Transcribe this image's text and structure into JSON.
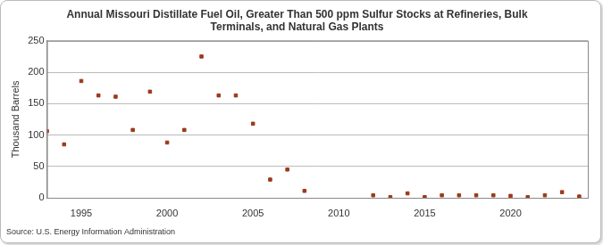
{
  "chart_data": {
    "type": "scatter",
    "title": "Annual Missouri Distillate Fuel Oil, Greater Than 500 ppm Sulfur Stocks at Refineries, Bulk\nTerminals, and Natural Gas Plants",
    "y_label": "Thousand Barrels",
    "source": "Source: U.S. Energy Information Administration",
    "x": [
      1993,
      1994,
      1995,
      1996,
      1997,
      1998,
      1999,
      2000,
      2001,
      2002,
      2003,
      2004,
      2005,
      2006,
      2007,
      2008,
      2012,
      2013,
      2014,
      2015,
      2016,
      2017,
      2018,
      2019,
      2020,
      2021,
      2022,
      2023,
      2024
    ],
    "values": [
      106,
      85,
      186,
      163,
      161,
      108,
      169,
      88,
      108,
      225,
      163,
      163,
      118,
      29,
      45,
      11,
      4,
      1,
      7,
      1,
      4,
      4,
      4,
      4,
      3,
      1,
      4,
      9,
      2
    ],
    "color": "#9c3a1a",
    "marker": "rect",
    "xlim": [
      1993,
      2024.5
    ],
    "xticks": [
      1995,
      2000,
      2005,
      2010,
      2015,
      2020
    ],
    "ylim": [
      0,
      250
    ],
    "yticks": [
      0,
      50,
      100,
      150,
      200,
      250
    ],
    "grid": true
  }
}
